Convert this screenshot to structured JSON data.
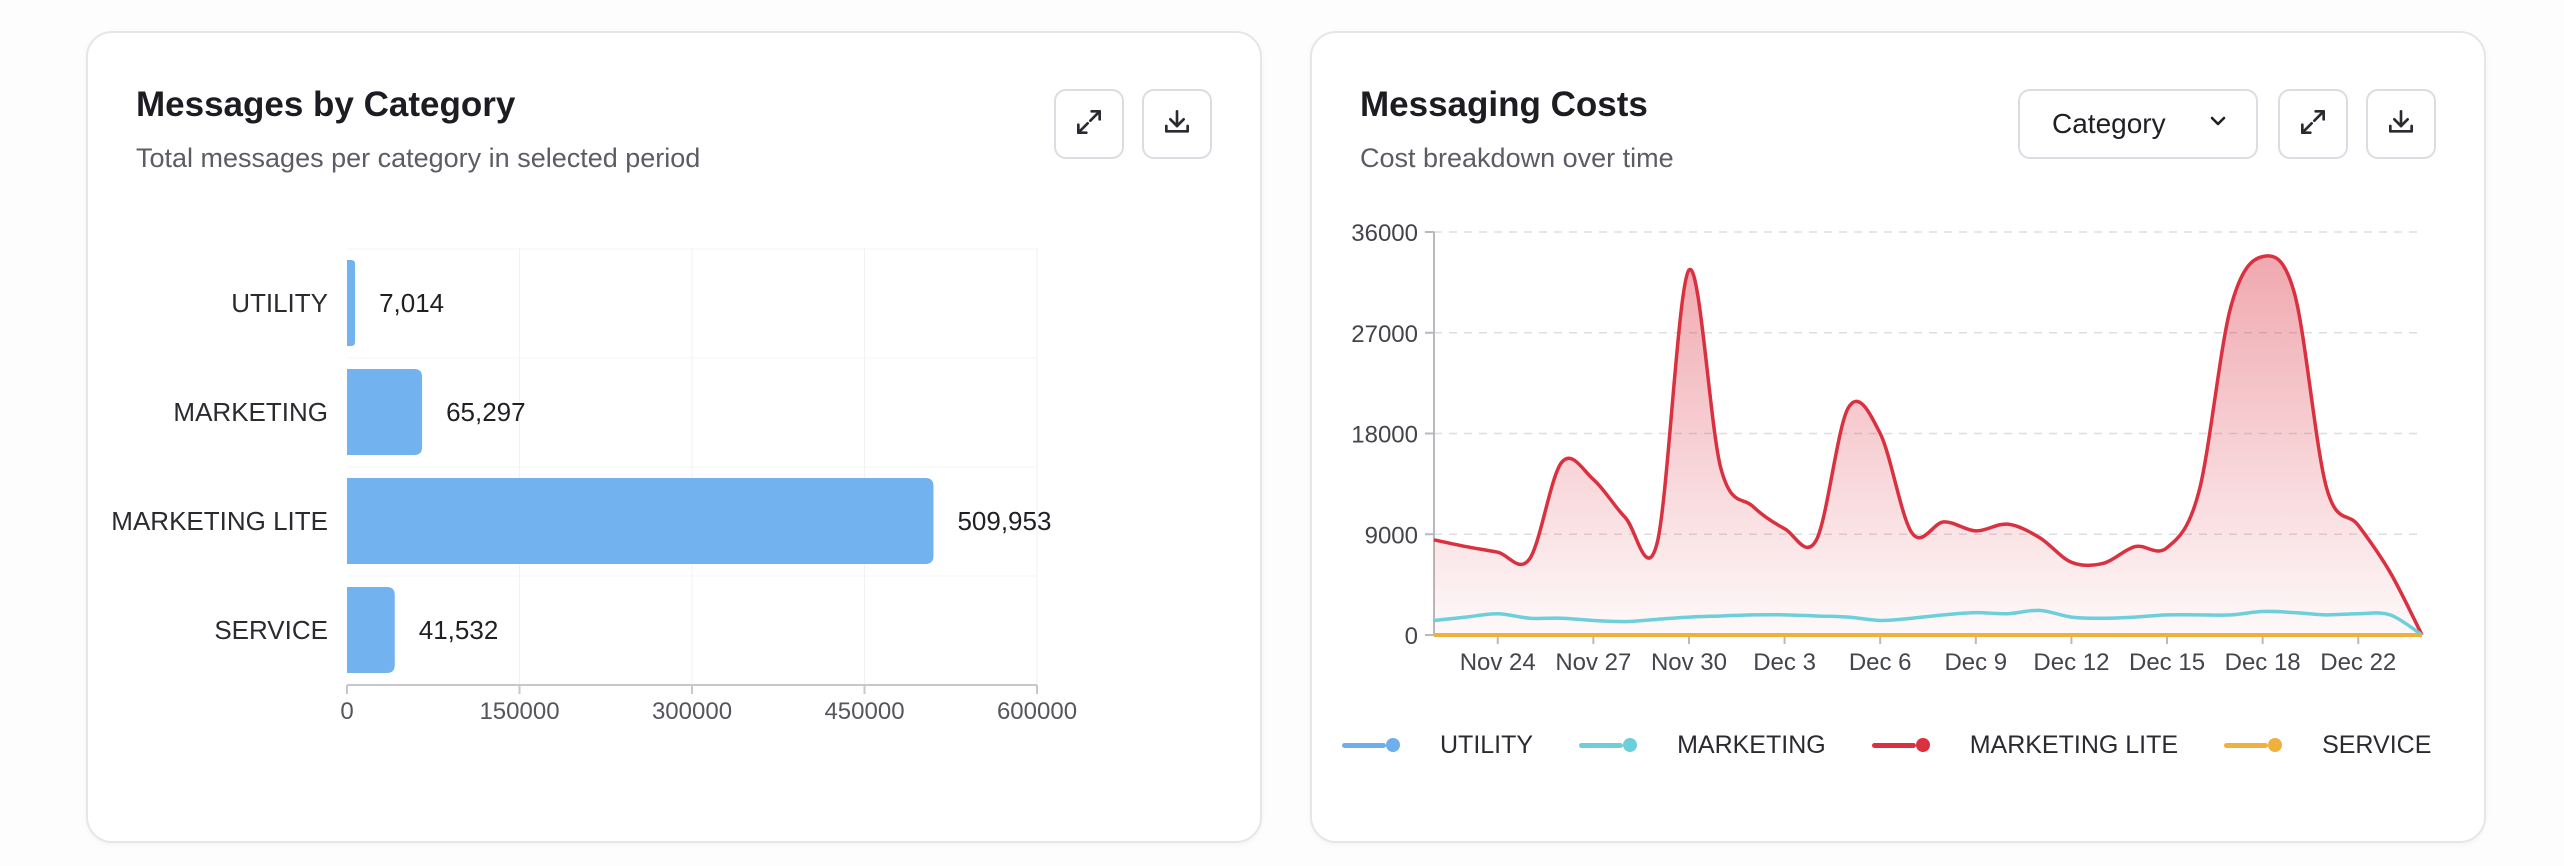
{
  "colors": {
    "bar": "#72b2ef",
    "utility": "#6eaeec",
    "marketing": "#6dcfd9",
    "marketing_lite": "#da3141",
    "service": "#f0b03e"
  },
  "card1": {
    "title": "Messages by Category",
    "subtitle": "Total messages per category in selected period",
    "icons": {
      "expand": "expand-icon",
      "download": "download-icon"
    }
  },
  "card2": {
    "title": "Messaging Costs",
    "subtitle": "Cost breakdown over time",
    "select_value": "Category",
    "icons": {
      "select": "chevron-down-icon",
      "expand": "expand-icon",
      "download": "download-icon"
    }
  },
  "chart_data": [
    {
      "type": "bar",
      "orientation": "horizontal",
      "title": "Messages by Category",
      "subtitle": "Total messages per category in selected period",
      "categories": [
        "UTILITY",
        "MARKETING",
        "MARKETING LITE",
        "SERVICE"
      ],
      "values": [
        7014,
        65297,
        509953,
        41532
      ],
      "value_labels": [
        "7,014",
        "65,297",
        "509,953",
        "41,532"
      ],
      "xlim": [
        0,
        600000
      ],
      "x_ticks": [
        0,
        150000,
        300000,
        450000,
        600000
      ],
      "x_tick_labels": [
        "0",
        "150000",
        "300000",
        "450000",
        "600000"
      ],
      "grid": true
    },
    {
      "type": "area",
      "title": "Messaging Costs",
      "subtitle": "Cost breakdown over time",
      "x_start": "Nov 22",
      "x_end": "Dec 23",
      "x_tick_labels": [
        "Nov 24",
        "Nov 27",
        "Nov 30",
        "Dec 3",
        "Dec 6",
        "Dec 9",
        "Dec 12",
        "Dec 15",
        "Dec 18",
        "Dec 22"
      ],
      "x_tick_days": [
        2,
        5,
        8,
        11,
        14,
        17,
        20,
        23,
        26,
        29
      ],
      "ylim": [
        0,
        36000
      ],
      "y_ticks": [
        0,
        9000,
        18000,
        27000,
        36000
      ],
      "y_tick_labels": [
        "0",
        "9000",
        "18000",
        "27000",
        "36000"
      ],
      "grid": true,
      "legend_position": "bottom",
      "series": [
        {
          "name": "UTILITY",
          "color": "#6eaeec",
          "x": [
            0,
            31
          ],
          "values": [
            0,
            0
          ]
        },
        {
          "name": "MARKETING",
          "color": "#6dcfd9",
          "x": [
            0,
            1,
            2,
            3,
            4,
            5,
            6,
            7,
            8,
            9,
            10,
            11,
            12,
            13,
            14,
            15,
            16,
            17,
            18,
            19,
            20,
            21,
            22,
            23,
            24,
            25,
            26,
            27,
            28,
            29,
            30,
            31
          ],
          "values": [
            1300,
            1600,
            1900,
            1500,
            1500,
            1300,
            1200,
            1400,
            1600,
            1700,
            1800,
            1800,
            1700,
            1600,
            1300,
            1500,
            1800,
            2000,
            1900,
            2200,
            1600,
            1500,
            1600,
            1800,
            1800,
            1800,
            2100,
            2000,
            1800,
            1900,
            1800,
            0
          ]
        },
        {
          "name": "MARKETING LITE",
          "color": "#da3141",
          "x": [
            0,
            1,
            2,
            3,
            4,
            5,
            6,
            7,
            8,
            9,
            10,
            11,
            12,
            13,
            14,
            15,
            16,
            17,
            18,
            19,
            20,
            21,
            22,
            23,
            24,
            25,
            26,
            27,
            28,
            29,
            30,
            31
          ],
          "values": [
            8500,
            7900,
            7400,
            6800,
            15400,
            13900,
            10500,
            8200,
            32600,
            14900,
            11500,
            9500,
            8500,
            20300,
            18000,
            9100,
            10100,
            9300,
            9900,
            8700,
            6500,
            6400,
            7900,
            7800,
            12800,
            29300,
            33800,
            30500,
            13200,
            9800,
            5600,
            0
          ]
        },
        {
          "name": "SERVICE",
          "color": "#f0b03e",
          "x": [
            0,
            31
          ],
          "values": [
            0,
            0
          ]
        }
      ]
    }
  ]
}
